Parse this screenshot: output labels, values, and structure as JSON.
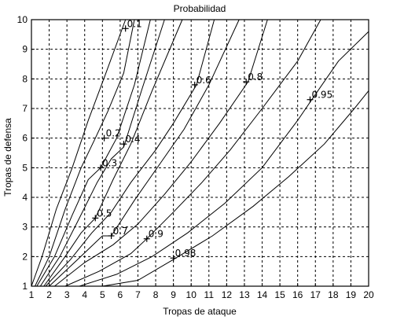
{
  "chart_data": {
    "type": "line",
    "title": "Probabilidad",
    "xlabel": "Tropas de ataque",
    "ylabel": "Tropas de defensa",
    "xlim": [
      1,
      20
    ],
    "ylim": [
      1,
      10
    ],
    "xticks": [
      "1",
      "2",
      "3",
      "4",
      "5",
      "6",
      "7",
      "8",
      "9",
      "10",
      "11",
      "12",
      "13",
      "14",
      "15",
      "16",
      "17",
      "18",
      "19",
      "20"
    ],
    "yticks": [
      "1",
      "2",
      "3",
      "4",
      "5",
      "6",
      "7",
      "8",
      "9",
      "10"
    ],
    "grid": true,
    "series": [
      {
        "name": "0.1",
        "x": [
          1.0,
          1.6,
          2.4,
          3.3,
          4.2,
          5.2,
          6.3
        ],
        "y": [
          1.0,
          2.0,
          3.6,
          5.0,
          6.6,
          8.2,
          10.0
        ]
      },
      {
        "name": "0.2",
        "x": [
          1.2,
          2.0,
          2.9,
          3.8,
          4.6,
          5.3,
          6.2,
          6.8
        ],
        "y": [
          1.0,
          2.0,
          3.6,
          5.0,
          6.0,
          6.9,
          8.2,
          10.0
        ]
      },
      {
        "name": "0.3",
        "x": [
          1.3,
          2.3,
          3.3,
          4.2,
          4.9,
          5.8,
          6.8,
          7.7
        ],
        "y": [
          1.0,
          2.0,
          3.4,
          4.6,
          5.0,
          6.0,
          7.8,
          10.0
        ]
      },
      {
        "name": "0.4",
        "x": [
          1.5,
          2.6,
          3.7,
          4.7,
          5.5,
          6.2,
          7.2,
          8.5
        ],
        "y": [
          1.0,
          2.0,
          3.3,
          4.5,
          5.3,
          5.7,
          7.6,
          10.0
        ]
      },
      {
        "name": "0.5",
        "x": [
          1.7,
          2.9,
          3.8,
          4.6,
          5.6,
          6.6,
          7.8,
          9.5
        ],
        "y": [
          1.0,
          2.0,
          2.8,
          3.3,
          4.6,
          5.8,
          7.6,
          10.0
        ]
      },
      {
        "name": "0.6",
        "x": [
          1.8,
          3.2,
          4.4,
          5.5,
          6.6,
          8.0,
          9.0,
          10.3,
          11.3
        ],
        "y": [
          1.0,
          1.9,
          2.8,
          3.5,
          4.5,
          5.6,
          6.5,
          7.8,
          10.0
        ]
      },
      {
        "name": "0.7",
        "x": [
          2.0,
          3.6,
          5.0,
          5.5,
          6.8,
          8.2,
          9.6,
          11.0,
          12.7
        ],
        "y": [
          1.0,
          1.9,
          2.7,
          2.7,
          3.9,
          5.1,
          6.3,
          7.8,
          10.0
        ]
      },
      {
        "name": "0.8",
        "x": [
          2.3,
          4.0,
          5.6,
          7.0,
          8.5,
          10.0,
          11.6,
          13.2,
          14.3
        ],
        "y": [
          1.0,
          1.8,
          2.4,
          3.1,
          4.1,
          5.2,
          6.5,
          7.9,
          10.0
        ]
      },
      {
        "name": "0.9",
        "x": [
          2.9,
          4.8,
          6.6,
          7.5,
          9.0,
          10.6,
          12.2,
          14.0,
          16.0,
          17.3
        ],
        "y": [
          1.0,
          1.5,
          2.1,
          2.6,
          3.5,
          4.5,
          5.6,
          7.0,
          8.6,
          10.0
        ]
      },
      {
        "name": "0.95",
        "x": [
          3.7,
          5.8,
          7.8,
          9.8,
          11.9,
          14.0,
          16.0,
          16.8,
          18.3,
          20.0
        ],
        "y": [
          1.0,
          1.4,
          2.0,
          2.8,
          3.8,
          5.0,
          6.6,
          7.3,
          8.6,
          9.6
        ]
      },
      {
        "name": "0.98",
        "x": [
          5.0,
          7.0,
          9.0,
          11.2,
          13.5,
          15.5,
          17.5,
          19.2,
          20.0
        ],
        "y": [
          1.0,
          1.2,
          1.9,
          2.7,
          3.7,
          4.7,
          5.8,
          7.0,
          7.6
        ]
      }
    ],
    "labels": [
      {
        "text": "0.1",
        "x": 6.3,
        "y": 9.7
      },
      {
        "text": "0.2",
        "x": 5.1,
        "y": 6.0
      },
      {
        "text": "0.3",
        "x": 4.9,
        "y": 5.0
      },
      {
        "text": "0.4",
        "x": 6.2,
        "y": 5.8
      },
      {
        "text": "0.5",
        "x": 4.6,
        "y": 3.3
      },
      {
        "text": "0.6",
        "x": 10.2,
        "y": 7.8
      },
      {
        "text": "0.7",
        "x": 5.5,
        "y": 2.7
      },
      {
        "text": "0.8",
        "x": 13.1,
        "y": 7.9
      },
      {
        "text": "0.9",
        "x": 7.5,
        "y": 2.6
      },
      {
        "text": "0.95",
        "x": 16.7,
        "y": 7.3
      },
      {
        "text": "0.98",
        "x": 9.0,
        "y": 1.95
      }
    ]
  }
}
